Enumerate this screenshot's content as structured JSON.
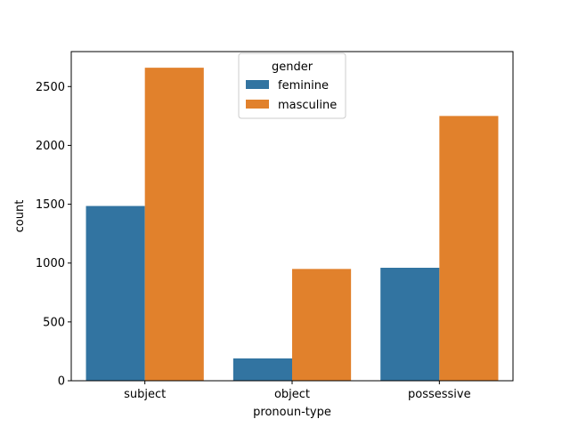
{
  "chart_data": {
    "type": "bar",
    "categories": [
      "subject",
      "object",
      "possessive"
    ],
    "series": [
      {
        "name": "feminine",
        "values": [
          1485,
          190,
          960
        ],
        "color": "#3274a1"
      },
      {
        "name": "masculine",
        "values": [
          2660,
          950,
          2250
        ],
        "color": "#e1812c"
      }
    ],
    "title": "",
    "xlabel": "pronoun-type",
    "ylabel": "count",
    "ylim": [
      0,
      2797
    ],
    "yticks": [
      0,
      500,
      1000,
      1500,
      2000,
      2500
    ],
    "legend": {
      "title": "gender",
      "placement": "top-center"
    },
    "grid": false
  }
}
